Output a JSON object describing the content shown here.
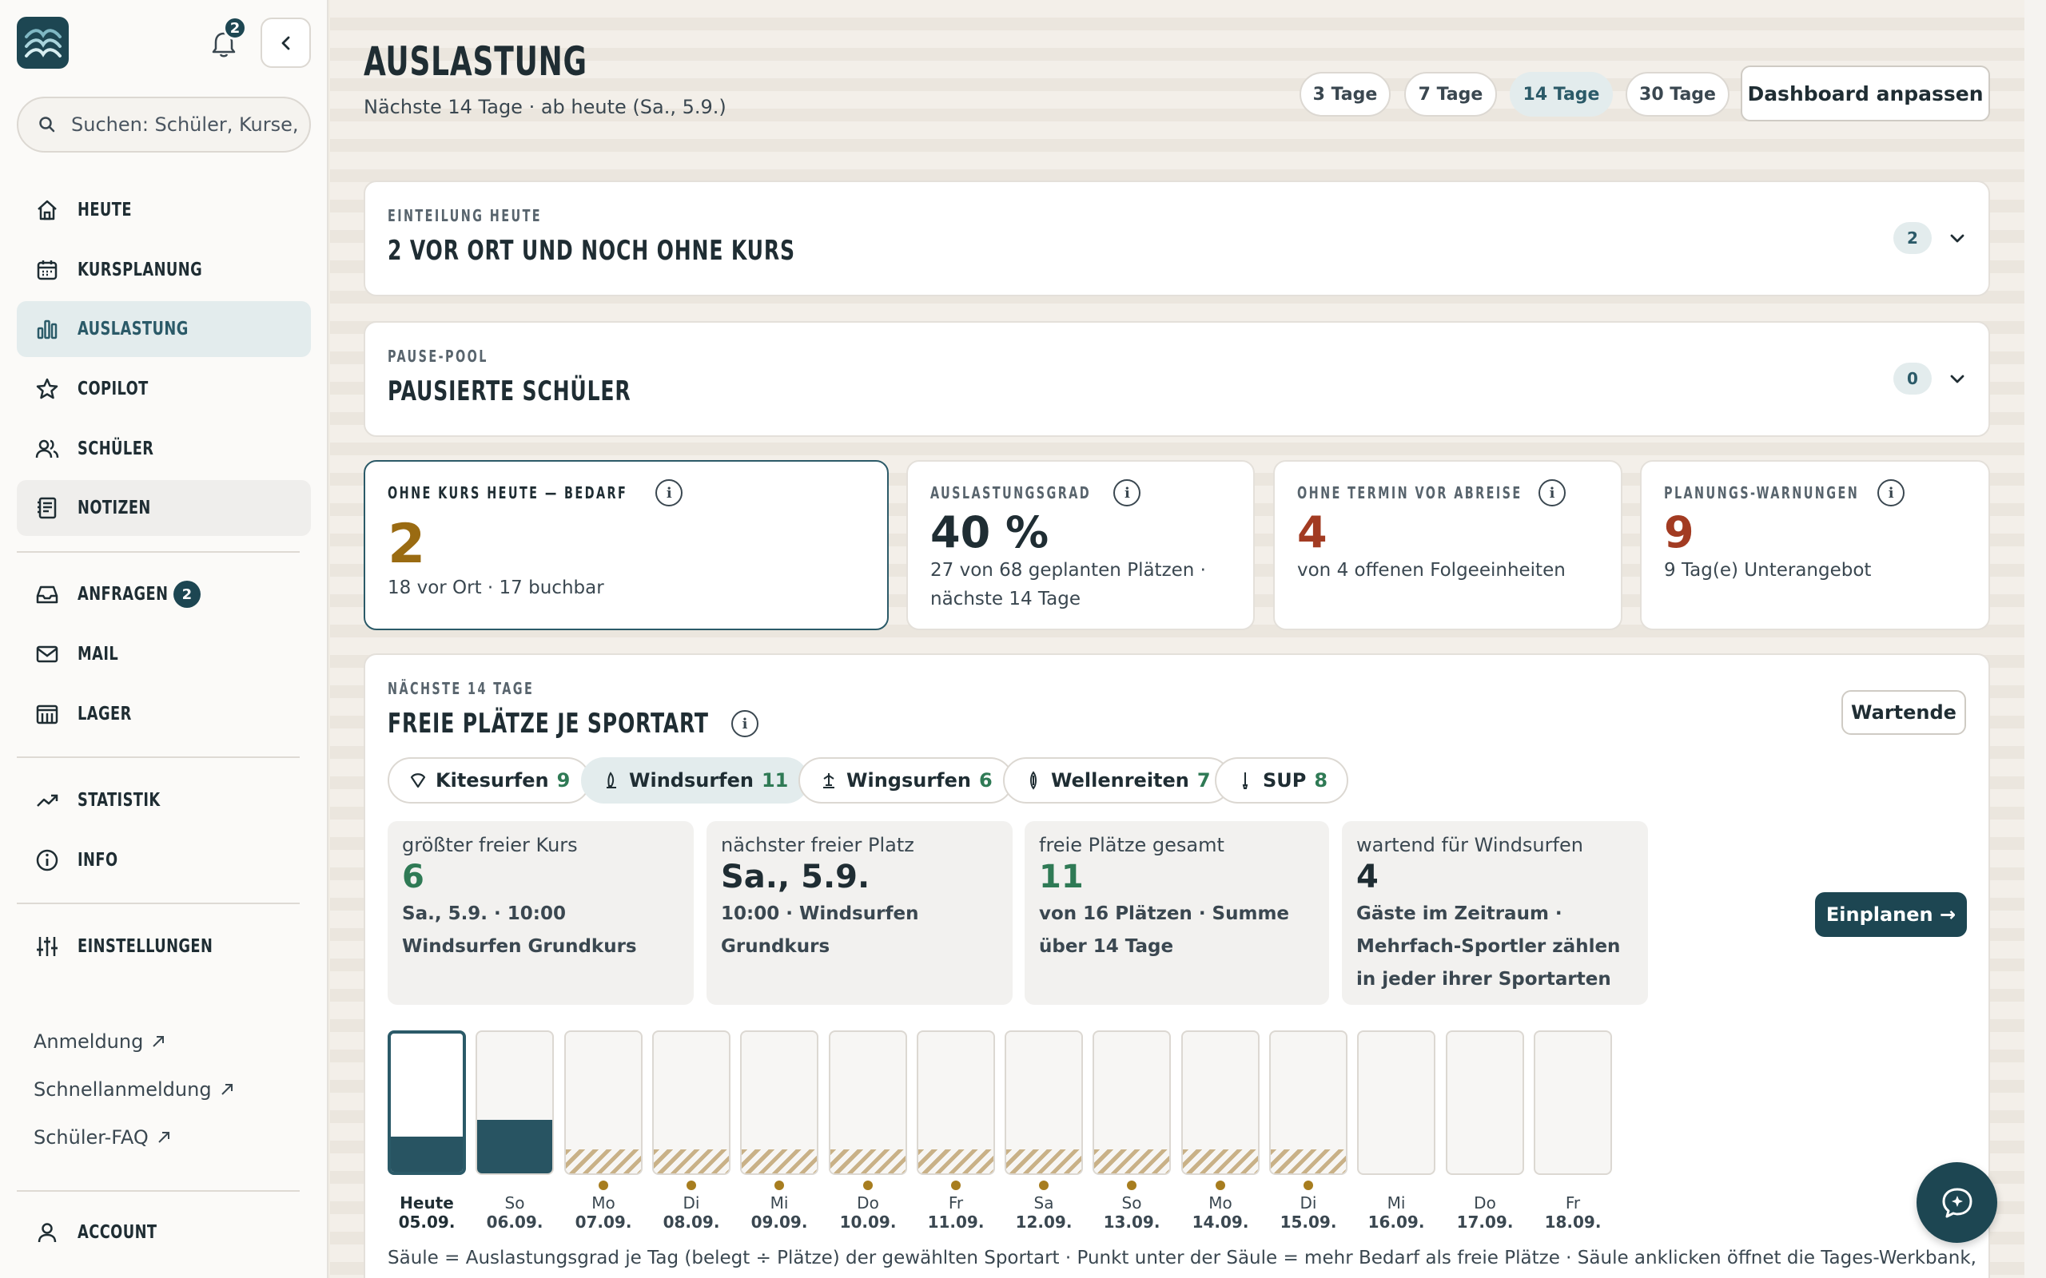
{
  "sidebar": {
    "notifications_count": "2",
    "search_placeholder": "Suchen: Schüler, Kurse, I",
    "nav": [
      {
        "label": "HEUTE",
        "icon": "home-icon"
      },
      {
        "label": "KURSPLANUNG",
        "icon": "calendar-icon"
      },
      {
        "label": "AUSLASTUNG",
        "icon": "bar-chart-icon",
        "active": true
      },
      {
        "label": "COPILOT",
        "icon": "star-icon"
      },
      {
        "label": "SCHÜLER",
        "icon": "users-icon"
      },
      {
        "label": "NOTIZEN",
        "icon": "notes-icon"
      },
      {
        "label": "ANFRAGEN",
        "icon": "inbox-icon",
        "count": "2"
      },
      {
        "label": "MAIL",
        "icon": "mail-icon"
      },
      {
        "label": "LAGER",
        "icon": "warehouse-icon"
      },
      {
        "label": "STATISTIK",
        "icon": "trend-icon"
      },
      {
        "label": "INFO",
        "icon": "info-icon"
      },
      {
        "label": "EINSTELLUNGEN",
        "icon": "sliders-icon"
      }
    ],
    "links": [
      "Anmeldung",
      "Schnellanmeldung",
      "Schüler-FAQ"
    ],
    "account_label": "ACCOUNT"
  },
  "header": {
    "title": "AUSLASTUNG",
    "subtitle": "Nächste 14 Tage · ab heute (Sa., 5.9.)",
    "ranges": [
      "3 Tage",
      "7 Tage",
      "14 Tage",
      "30 Tage"
    ],
    "selected_range": "14 Tage",
    "customize_label": "Dashboard anpassen"
  },
  "sections": {
    "einteilung": {
      "eyebrow": "EINTEILUNG HEUTE",
      "title": "2 VOR ORT UND NOCH OHNE KURS",
      "count": "2"
    },
    "pause": {
      "eyebrow": "PAUSE-POOL",
      "title": "PAUSIERTE SCHÜLER",
      "count": "0"
    }
  },
  "kpis": [
    {
      "label": "OHNE KURS HEUTE — BEDARF",
      "value": "2",
      "sub": "18 vor Ort · 17 buchbar",
      "color": "#9a6b12"
    },
    {
      "label": "AUSLASTUNGSGRAD",
      "value": "40 %",
      "sub": "27 von 68 geplanten Plätzen · nächste 14 Tage",
      "color": "#1f2d33"
    },
    {
      "label": "OHNE TERMIN VOR ABREISE",
      "value": "4",
      "sub": "von 4 offenen Folgeeinheiten",
      "color": "#a23b22"
    },
    {
      "label": "PLANUNGS-WARNUNGEN",
      "value": "9",
      "sub": "9 Tag(e) Unterangebot",
      "color": "#a23b22"
    }
  ],
  "free_slots": {
    "eyebrow": "NÄCHSTE 14 TAGE",
    "title": "FREIE PLÄTZE JE SPORTART",
    "waiting_label": "Wartende",
    "sports": [
      {
        "name": "Kitesurfen",
        "count": "9",
        "icon": "kite-icon"
      },
      {
        "name": "Windsurfen",
        "count": "11",
        "icon": "windsurf-icon",
        "selected": true
      },
      {
        "name": "Wingsurfen",
        "count": "6",
        "icon": "wing-icon"
      },
      {
        "name": "Wellenreiten",
        "count": "7",
        "icon": "surfboard-icon"
      },
      {
        "name": "SUP",
        "count": "8",
        "icon": "paddle-icon"
      }
    ],
    "stats": [
      {
        "label": "größter freier Kurs",
        "value": "6",
        "sub": "Sa., 5.9. · 10:00 Windsurfen Grundkurs",
        "color": "#2f7a55"
      },
      {
        "label": "nächster freier Platz",
        "value": "Sa., 5.9.",
        "sub": "10:00 · Windsurfen Grundkurs",
        "color": "#1f2d33"
      },
      {
        "label": "freie Plätze gesamt",
        "value": "11",
        "sub": "von 16 Plätzen · Summe über 14 Tage",
        "color": "#2f7a55"
      },
      {
        "label": "wartend für Windsurfen",
        "value": "4",
        "sub": "Gäste im Zeitraum · Mehrfach-Sportler zählen in jeder ihrer Sportarten",
        "color": "#1f2d33"
      }
    ],
    "plan_label": "Einplanen →",
    "caption": "Säule = Auslastungsgrad je Tag (belegt ÷ Plätze) der gewählten Sportart · Punkt unter der Säule = mehr Bedarf als freie Plätze · Säule anklicken öffnet die Tages-Werkbank,"
  },
  "chart_data": {
    "type": "bar",
    "categories": [
      "Heute 05.09.",
      "So 06.09.",
      "Mo 07.09.",
      "Di 08.09.",
      "Mi 09.09.",
      "Do 10.09.",
      "Fr 11.09.",
      "Sa 12.09.",
      "So 13.09.",
      "Mo 14.09.",
      "Di 15.09.",
      "Mi 16.09.",
      "Do 17.09.",
      "Fr 18.09."
    ],
    "days": [
      {
        "wd": "Heute",
        "date": "05.09.",
        "fill": 0.25,
        "hatch": false,
        "dot": false
      },
      {
        "wd": "So",
        "date": "06.09.",
        "fill": 0.38,
        "hatch": false,
        "dot": false
      },
      {
        "wd": "Mo",
        "date": "07.09.",
        "fill": 0,
        "hatch": true,
        "dot": true
      },
      {
        "wd": "Di",
        "date": "08.09.",
        "fill": 0,
        "hatch": true,
        "dot": true
      },
      {
        "wd": "Mi",
        "date": "09.09.",
        "fill": 0,
        "hatch": true,
        "dot": true
      },
      {
        "wd": "Do",
        "date": "10.09.",
        "fill": 0,
        "hatch": true,
        "dot": true
      },
      {
        "wd": "Fr",
        "date": "11.09.",
        "fill": 0,
        "hatch": true,
        "dot": true
      },
      {
        "wd": "Sa",
        "date": "12.09.",
        "fill": 0,
        "hatch": true,
        "dot": true
      },
      {
        "wd": "So",
        "date": "13.09.",
        "fill": 0,
        "hatch": true,
        "dot": true
      },
      {
        "wd": "Mo",
        "date": "14.09.",
        "fill": 0,
        "hatch": true,
        "dot": true
      },
      {
        "wd": "Di",
        "date": "15.09.",
        "fill": 0,
        "hatch": true,
        "dot": true
      },
      {
        "wd": "Mi",
        "date": "16.09.",
        "fill": 0,
        "hatch": false,
        "dot": false
      },
      {
        "wd": "Do",
        "date": "17.09.",
        "fill": 0,
        "hatch": false,
        "dot": false
      },
      {
        "wd": "Fr",
        "date": "18.09.",
        "fill": 0,
        "hatch": false,
        "dot": false
      }
    ],
    "ylim": [
      0,
      1
    ]
  }
}
